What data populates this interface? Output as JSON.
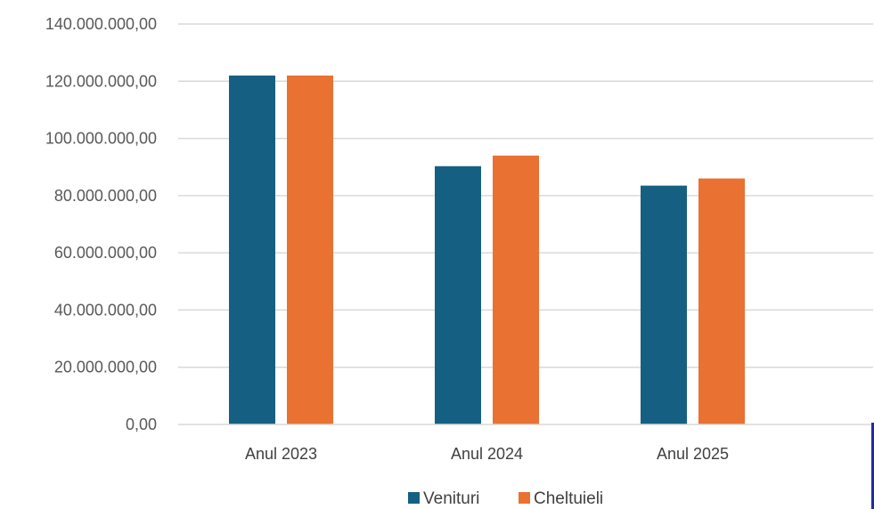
{
  "chart_data": {
    "type": "bar",
    "title": "",
    "xlabel": "",
    "ylabel": "",
    "categories": [
      "Anul 2023",
      "Anul 2024",
      "Anul 2025"
    ],
    "series": [
      {
        "name": "Venituri",
        "color": "#156082",
        "values": [
          122000000,
          90300000,
          83500000
        ]
      },
      {
        "name": "Cheltuieli",
        "color": "#E97132",
        "values": [
          122000000,
          94000000,
          86000000
        ]
      }
    ],
    "ylim": [
      0,
      140000000
    ],
    "yticks": [
      0,
      20000000,
      40000000,
      60000000,
      80000000,
      100000000,
      120000000,
      140000000
    ],
    "ytick_labels": [
      "0,00",
      "20.000.000,00",
      "40.000.000,00",
      "60.000.000,00",
      "80.000.000,00",
      "100.000.000,00",
      "120.000.000,00",
      "140.000.000,00"
    ],
    "grid": true,
    "legend_position": "bottom"
  }
}
